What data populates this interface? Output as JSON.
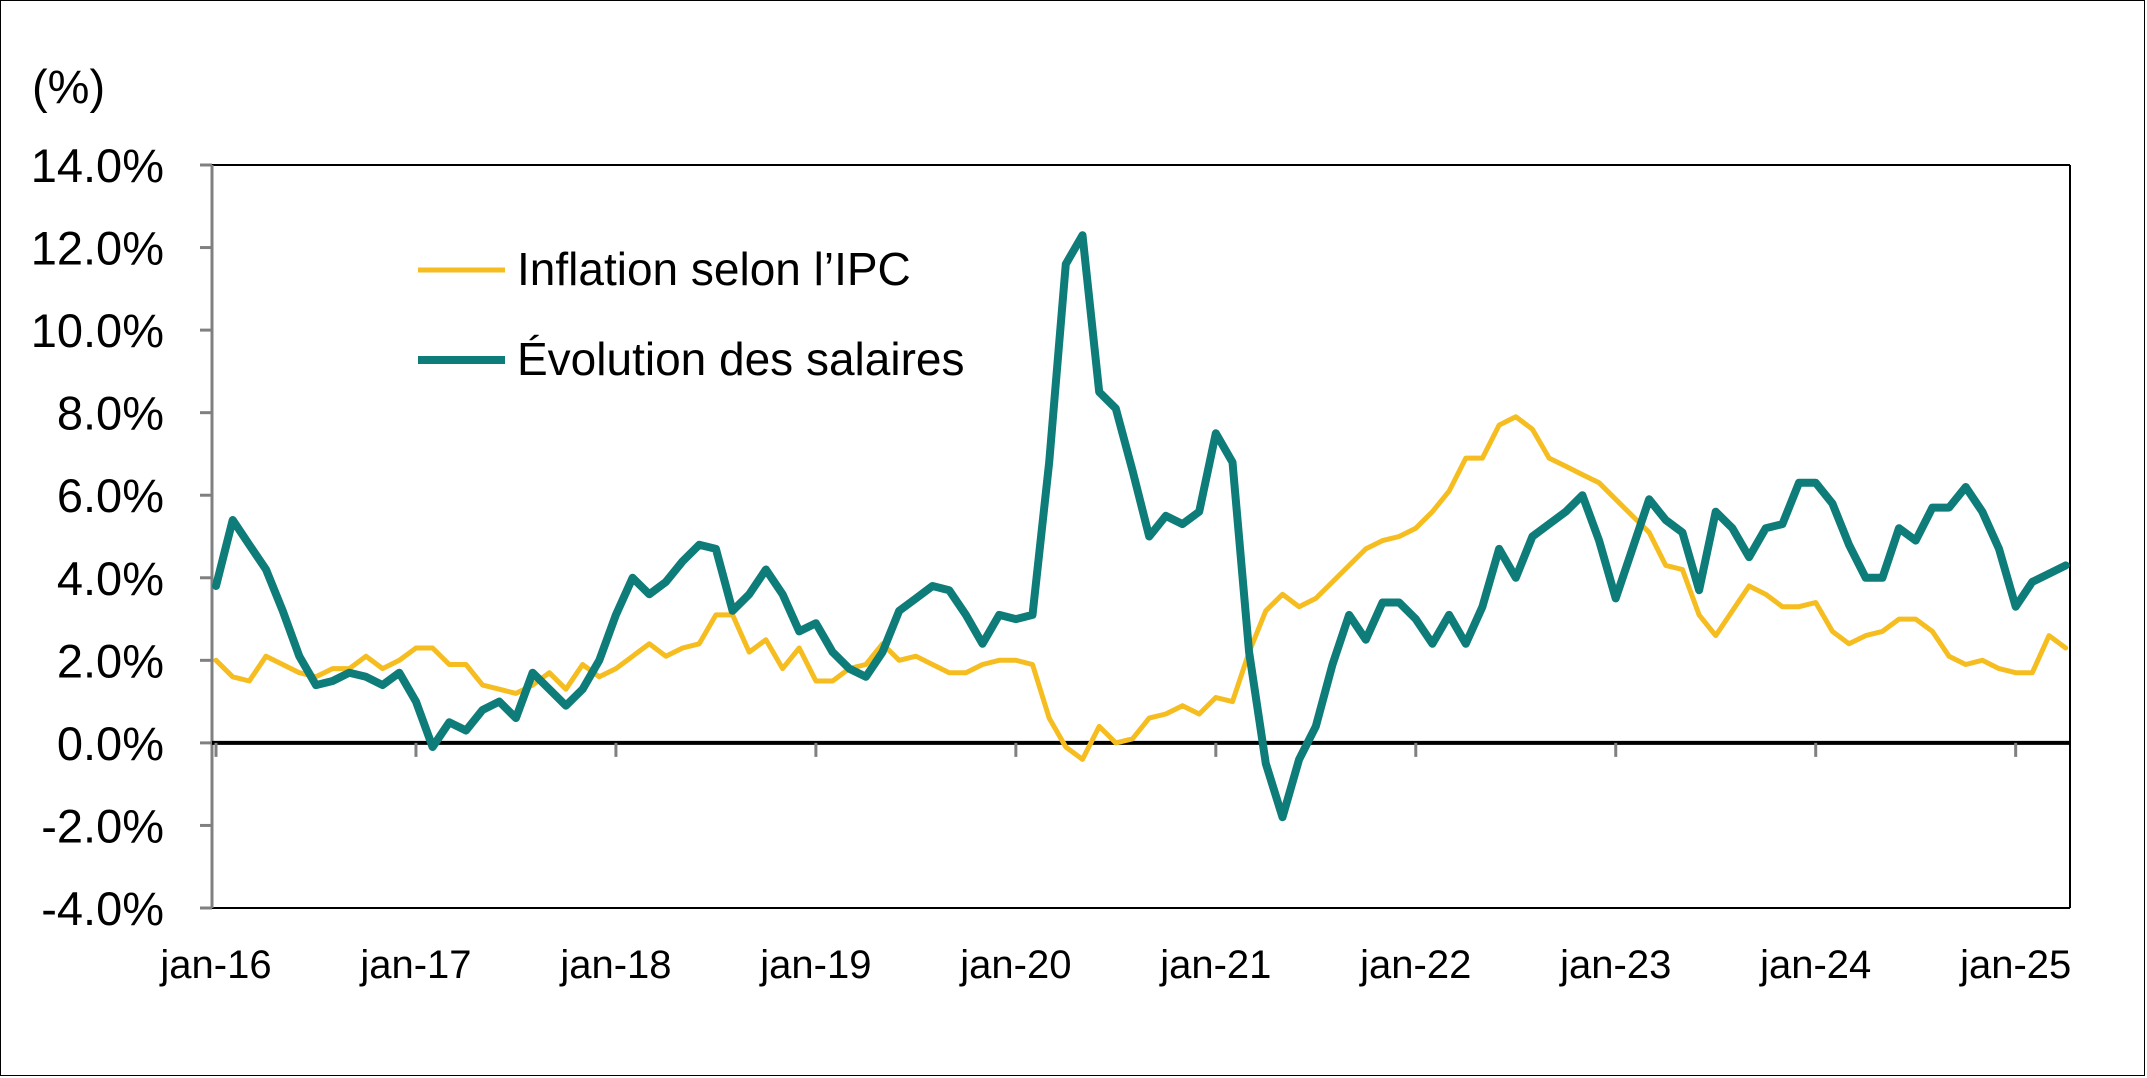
{
  "chart_data": {
    "type": "line",
    "title": "",
    "unit_label": "(%)",
    "xlabel": "",
    "ylabel": "(%)",
    "ylim": [
      -4.0,
      14.0
    ],
    "y_ticks": [
      -4.0,
      -2.0,
      0.0,
      2.0,
      4.0,
      6.0,
      8.0,
      10.0,
      12.0,
      14.0
    ],
    "y_tick_labels": [
      "-4.0%",
      "-2.0%",
      "0.0%",
      "2.0%",
      "4.0%",
      "6.0%",
      "8.0%",
      "10.0%",
      "12.0%",
      "14.0%"
    ],
    "x_start": "jan-16",
    "x_tick_labels": [
      "jan-16",
      "jan-17",
      "jan-18",
      "jan-19",
      "jan-20",
      "jan-21",
      "jan-22",
      "jan-23",
      "jan-24",
      "jan-25"
    ],
    "x_tick_month_index": [
      0,
      12,
      24,
      36,
      48,
      60,
      72,
      84,
      96,
      108
    ],
    "grid": false,
    "legend_position": "top-left",
    "colors": {
      "inflation": "#F5BD1F",
      "salaires": "#0E7C78",
      "axis": "#000000",
      "zero_line": "#000000"
    },
    "series": [
      {
        "name": "Inflation selon l’IPC",
        "color": "#F5BD1F",
        "values": [
          2.0,
          1.6,
          1.5,
          2.1,
          1.9,
          1.7,
          1.6,
          1.8,
          1.8,
          2.1,
          1.8,
          2.0,
          2.3,
          2.3,
          1.9,
          1.9,
          1.4,
          1.3,
          1.2,
          1.4,
          1.7,
          1.3,
          1.9,
          1.6,
          1.8,
          2.1,
          2.4,
          2.1,
          2.3,
          2.4,
          3.1,
          3.1,
          2.2,
          2.5,
          1.8,
          2.3,
          1.5,
          1.5,
          1.8,
          1.9,
          2.4,
          2.0,
          2.1,
          1.9,
          1.7,
          1.7,
          1.9,
          2.0,
          2.0,
          1.9,
          0.6,
          -0.1,
          -0.4,
          0.4,
          0.0,
          0.1,
          0.6,
          0.7,
          0.9,
          0.7,
          1.1,
          1.0,
          2.2,
          3.2,
          3.6,
          3.3,
          3.5,
          3.9,
          4.3,
          4.7,
          4.9,
          5.0,
          5.2,
          5.6,
          6.1,
          6.9,
          6.9,
          7.7,
          7.9,
          7.6,
          6.9,
          6.7,
          6.5,
          6.3,
          5.9,
          5.5,
          5.1,
          4.3,
          4.2,
          3.1,
          2.6,
          3.2,
          3.8,
          3.6,
          3.3,
          3.3,
          3.4,
          2.7,
          2.4,
          2.6,
          2.7,
          3.0,
          3.0,
          2.7,
          2.1,
          1.9,
          2.0,
          1.8,
          1.7,
          1.7,
          2.6,
          2.3
        ]
      },
      {
        "name": "Évolution des salaires",
        "color": "#0E7C78",
        "values": [
          3.8,
          5.4,
          4.8,
          4.2,
          3.2,
          2.1,
          1.4,
          1.5,
          1.7,
          1.6,
          1.4,
          1.7,
          1.0,
          -0.1,
          0.5,
          0.3,
          0.8,
          1.0,
          0.6,
          1.7,
          1.3,
          0.9,
          1.3,
          2.0,
          3.1,
          4.0,
          3.6,
          3.9,
          4.4,
          4.8,
          4.7,
          3.2,
          3.6,
          4.2,
          3.6,
          2.7,
          2.9,
          2.2,
          1.8,
          1.6,
          2.2,
          3.2,
          3.5,
          3.8,
          3.7,
          3.1,
          2.4,
          3.1,
          3.0,
          3.1,
          6.8,
          11.6,
          12.3,
          8.5,
          8.1,
          6.6,
          5.0,
          5.5,
          5.3,
          5.6,
          7.5,
          6.8,
          2.2,
          -0.5,
          -1.8,
          -0.4,
          0.4,
          1.9,
          3.1,
          2.5,
          3.4,
          3.4,
          3.0,
          2.4,
          3.1,
          2.4,
          3.3,
          4.7,
          4.0,
          5.0,
          5.3,
          5.6,
          6.0,
          4.9,
          3.5,
          4.7,
          5.9,
          5.4,
          5.1,
          3.7,
          5.6,
          5.2,
          4.5,
          5.2,
          5.3,
          6.3,
          6.3,
          5.8,
          4.8,
          4.0,
          4.0,
          5.2,
          4.9,
          5.7,
          5.7,
          6.2,
          5.6,
          4.7,
          3.3,
          3.9,
          4.1,
          4.3
        ]
      }
    ]
  }
}
